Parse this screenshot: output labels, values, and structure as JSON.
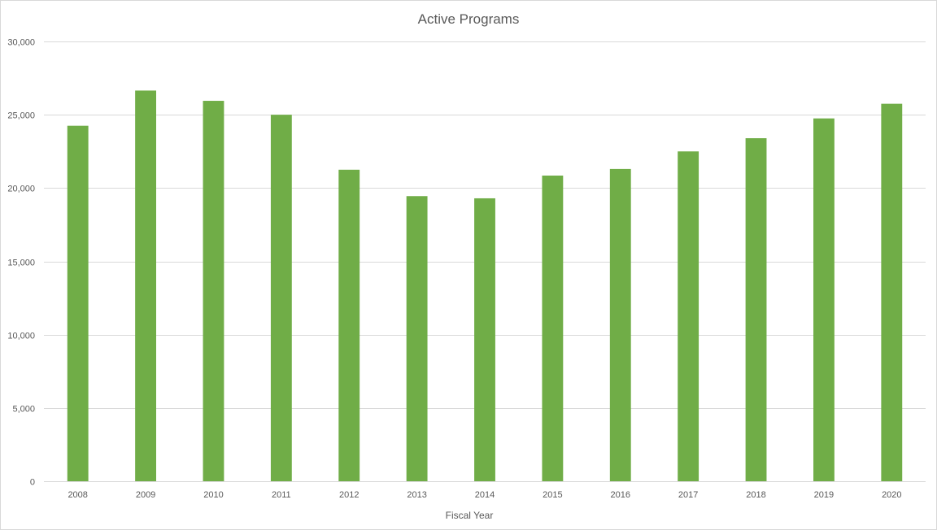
{
  "chart_data": {
    "type": "bar",
    "title": "Active Programs",
    "xlabel": "Fiscal Year",
    "ylabel": "",
    "categories": [
      "2008",
      "2009",
      "2010",
      "2011",
      "2012",
      "2013",
      "2014",
      "2015",
      "2016",
      "2017",
      "2018",
      "2019",
      "2020"
    ],
    "values": [
      24250,
      26650,
      25950,
      25000,
      21250,
      19450,
      19300,
      20850,
      21300,
      22500,
      23400,
      24750,
      25750
    ],
    "ylim": [
      0,
      30000
    ],
    "yticks": [
      0,
      5000,
      10000,
      15000,
      20000,
      25000,
      30000
    ],
    "ytick_labels": [
      "0",
      "5,000",
      "10,000",
      "15,000",
      "20,000",
      "25,000",
      "30,000"
    ],
    "grid": true,
    "legend": "none",
    "colors": {
      "bar": "#70ad47",
      "grid": "#d9d9d9",
      "text": "#595959"
    }
  }
}
